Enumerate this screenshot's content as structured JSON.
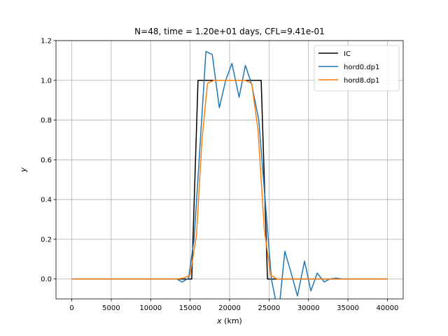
{
  "chart_data": {
    "type": "line",
    "title": "N=48, time = 1.20e+01 days, CFL=9.41e-01",
    "xlabel": "x",
    "xlabel_unit": " (km)",
    "ylabel": "y",
    "xlim": [
      -2000,
      42000
    ],
    "ylim": [
      -0.1,
      1.2
    ],
    "xticks": [
      0,
      5000,
      10000,
      15000,
      20000,
      25000,
      30000,
      35000,
      40000
    ],
    "xtick_labels": [
      "0",
      "5000",
      "10000",
      "15000",
      "20000",
      "25000",
      "30000",
      "35000",
      "40000"
    ],
    "yticks": [
      0.0,
      0.2,
      0.4,
      0.6,
      0.8,
      1.0,
      1.2
    ],
    "ytick_labels": [
      "0.0",
      "0.2",
      "0.4",
      "0.6",
      "0.8",
      "1.0",
      "1.2"
    ],
    "grid": true,
    "legend_position": "top-right",
    "series": [
      {
        "name": "IC",
        "color": "#000000",
        "x": [
          0,
          15000,
          15200,
          16000,
          24000,
          24800,
          25000,
          40000
        ],
        "y": [
          0,
          0,
          0,
          1,
          1,
          0,
          0,
          0
        ]
      },
      {
        "name": "hord0.dp1",
        "color": "#1f77b4",
        "x": [
          0,
          10000,
          12000,
          13300,
          14000,
          14800,
          15500,
          16300,
          17000,
          17800,
          18700,
          19500,
          20300,
          21200,
          22000,
          22800,
          23700,
          24500,
          25300,
          26200,
          27000,
          27800,
          28600,
          29500,
          30300,
          31100,
          32000,
          32700,
          33500,
          34300,
          35000,
          40000
        ],
        "y": [
          0,
          0,
          0,
          0,
          -0.015,
          0.005,
          0.2,
          0.7,
          1.145,
          1.13,
          0.862,
          1.0,
          1.085,
          0.915,
          1.075,
          0.98,
          0.8,
          0.4,
          0.0,
          -0.18,
          0.14,
          0.03,
          -0.085,
          0.09,
          -0.06,
          0.03,
          -0.015,
          0.0,
          0.005,
          0.0,
          0.0,
          0.0
        ]
      },
      {
        "name": "hord8.dp1",
        "color": "#ff7f0e",
        "x": [
          0,
          12000,
          13300,
          14200,
          15000,
          15800,
          16500,
          17200,
          18000,
          19000,
          20000,
          21000,
          22000,
          22800,
          23600,
          24400,
          25200,
          26000,
          27000,
          40000
        ],
        "y": [
          0,
          0,
          0,
          0.005,
          0.02,
          0.22,
          0.7,
          0.985,
          1.0,
          1.0,
          1.0,
          1.0,
          1.0,
          0.985,
          0.75,
          0.25,
          0.02,
          0.0,
          0.0,
          0.0
        ]
      }
    ]
  }
}
